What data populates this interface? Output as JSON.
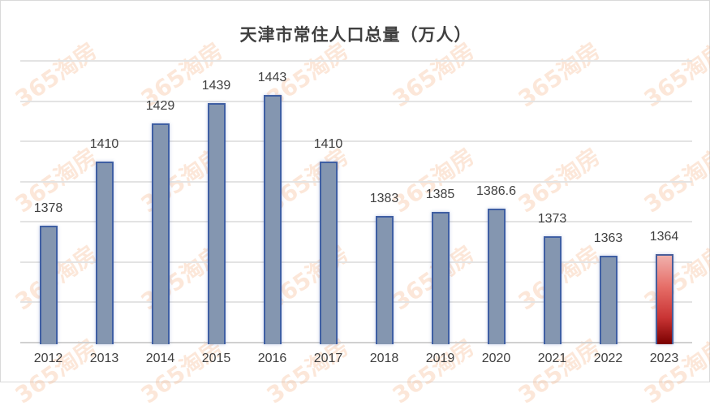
{
  "chart_data": {
    "type": "bar",
    "title": "天津市常住人口总量（万人）",
    "xlabel": "",
    "ylabel": "",
    "categories": [
      "2012",
      "2013",
      "2014",
      "2015",
      "2016",
      "2017",
      "2018",
      "2019",
      "2020",
      "2021",
      "2022",
      "2023"
    ],
    "values": [
      1378,
      1410,
      1429,
      1439,
      1443,
      1410,
      1383,
      1385,
      1386.6,
      1373,
      1363,
      1364
    ],
    "value_labels": [
      "1378",
      "1410",
      "1429",
      "1439",
      "1443",
      "1410",
      "1383",
      "1385",
      "1386.6",
      "1373",
      "1363",
      "1364"
    ],
    "ylim": [
      1320,
      1460
    ],
    "y_gridlines": [
      1320,
      1340,
      1360,
      1380,
      1400,
      1420,
      1440,
      1460
    ],
    "y_axis_labels_visible": false,
    "grid": true,
    "legend": null,
    "bar_color": "#8496b0",
    "bar_border_color": "#3f5fa3",
    "highlight": {
      "category": "2023",
      "style": "gradient",
      "colors": [
        "#f0b0ac",
        "#7a0000"
      ]
    }
  },
  "watermark": {
    "text": "365淘房"
  }
}
